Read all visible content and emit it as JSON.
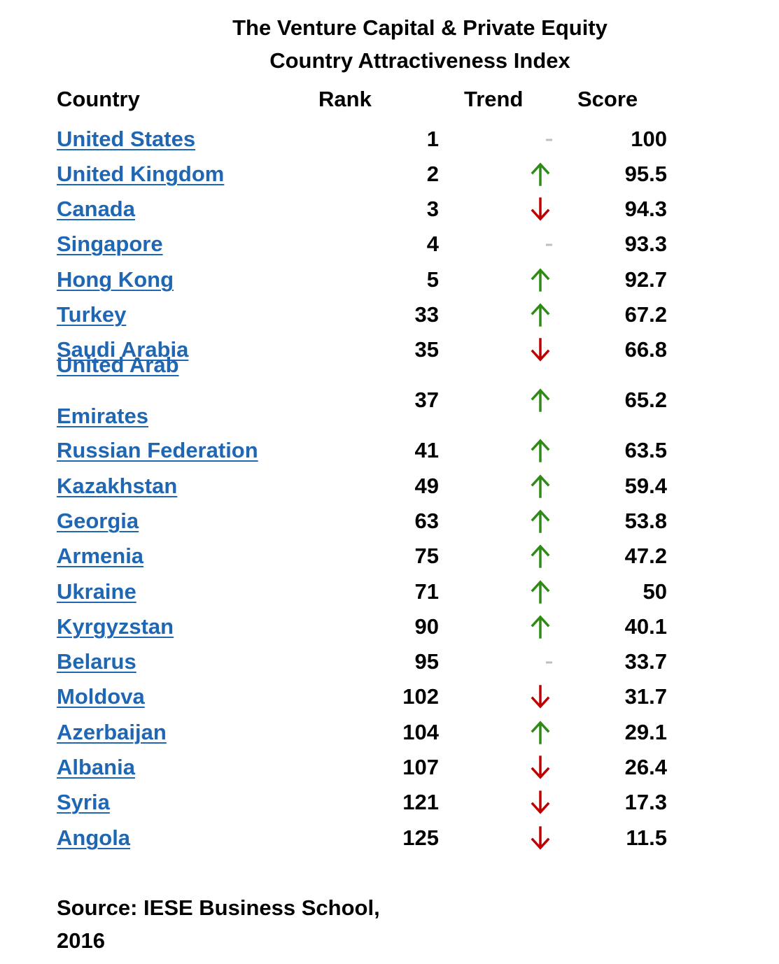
{
  "title": {
    "line1": "The Venture Capital & Private Equity",
    "line2": "Country Attractiveness Index"
  },
  "headers": {
    "country": "Country",
    "rank": "Rank",
    "trend": "Trend",
    "score": "Score"
  },
  "colors": {
    "link": "#1f66b3",
    "up": "#2e8b16",
    "down": "#c00000",
    "flat": "#bfbfbf"
  },
  "rows": [
    {
      "country": "United States",
      "rank": "1",
      "trend": "flat",
      "score": "100"
    },
    {
      "country": "United Kingdom",
      "rank": "2",
      "trend": "up",
      "score": "95.5"
    },
    {
      "country": "Canada",
      "rank": "3",
      "trend": "down",
      "score": "94.3"
    },
    {
      "country": "Singapore",
      "rank": "4",
      "trend": "flat",
      "score": "93.3"
    },
    {
      "country": "Hong Kong",
      "rank": "5",
      "trend": "up",
      "score": "92.7"
    },
    {
      "country": "Turkey",
      "rank": "33",
      "trend": "up",
      "score": "67.2"
    },
    {
      "country": "Saudi Arabia",
      "rank": "35",
      "trend": "down",
      "score": "66.8"
    },
    {
      "country": "United Arab Emirates",
      "country_line1": "United Arab",
      "country_line2": "Emirates",
      "rank": "37",
      "trend": "up",
      "score": "65.2"
    },
    {
      "country": "Russian Federation",
      "rank": "41",
      "trend": "up",
      "score": "63.5"
    },
    {
      "country": "Kazakhstan",
      "rank": "49",
      "trend": "up",
      "score": "59.4"
    },
    {
      "country": "Georgia",
      "rank": "63",
      "trend": "up",
      "score": "53.8"
    },
    {
      "country": "Armenia",
      "rank": "75",
      "trend": "up",
      "score": "47.2"
    },
    {
      "country": "Ukraine",
      "rank": "71",
      "trend": "up",
      "score": "50"
    },
    {
      "country": "Kyrgyzstan",
      "rank": "90",
      "trend": "up",
      "score": "40.1"
    },
    {
      "country": "Belarus",
      "rank": "95",
      "trend": "flat",
      "score": "33.7"
    },
    {
      "country": "Moldova",
      "rank": "102",
      "trend": "down",
      "score": "31.7"
    },
    {
      "country": "Azerbaijan",
      "rank": "104",
      "trend": "up",
      "score": "29.1"
    },
    {
      "country": "Albania",
      "rank": "107",
      "trend": "down",
      "score": "26.4"
    },
    {
      "country": "Syria",
      "rank": "121",
      "trend": "down",
      "score": "17.3"
    },
    {
      "country": "Angola",
      "rank": "125",
      "trend": "down",
      "score": "11.5"
    }
  ],
  "source": {
    "line1": "Source:  IESE Business School,",
    "line2": "2016"
  }
}
